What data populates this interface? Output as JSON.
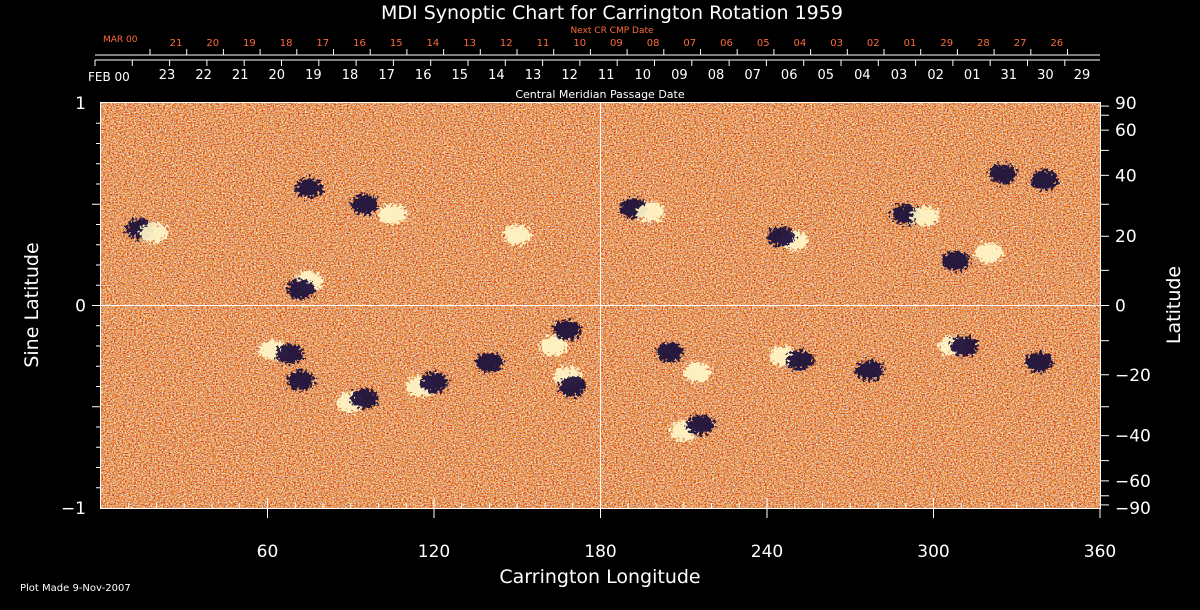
{
  "chart_data": {
    "type": "heatmap",
    "title": "MDI Synoptic Chart for Carrington Rotation 1959",
    "xlabel": "Carrington Longitude",
    "ylabel_left": "Sine Latitude",
    "ylabel_right": "Latitude",
    "xlim": [
      0,
      360
    ],
    "ylim": [
      -1,
      1
    ],
    "x_ticks": [
      60,
      120,
      180,
      240,
      300,
      360
    ],
    "y_ticks_left": [
      1,
      0,
      -1
    ],
    "y_ticks_left_labels": [
      "1",
      "0",
      "−1"
    ],
    "y_ticks_right": [
      90,
      60,
      40,
      20,
      0,
      -20,
      -40,
      -60,
      -90
    ],
    "y_ticks_right_labels": [
      "90",
      "60",
      "40",
      "20",
      "0",
      "−20",
      "−40",
      "−60",
      "−90"
    ],
    "top_axis_cmp": {
      "title": "Central Meridian Passage Date",
      "month_label": "FEB 00",
      "dates": [
        "23",
        "22",
        "21",
        "20",
        "19",
        "18",
        "17",
        "16",
        "15",
        "14",
        "13",
        "12",
        "11",
        "10",
        "09",
        "08",
        "07",
        "06",
        "05",
        "04",
        "03",
        "02",
        "01",
        "31",
        "30",
        "29"
      ]
    },
    "top_axis_next": {
      "title": "Next CR CMP Date",
      "month_label": "MAR 00",
      "dates": [
        "21",
        "20",
        "19",
        "18",
        "17",
        "16",
        "15",
        "14",
        "13",
        "12",
        "11",
        "10",
        "09",
        "08",
        "07",
        "06",
        "05",
        "04",
        "03",
        "02",
        "01",
        "29",
        "28",
        "27",
        "26"
      ]
    },
    "grid": {
      "meridian": 180,
      "equator": 0
    },
    "colors": {
      "background": "#000000",
      "field": "#ff4a10",
      "positive": "#fff6c8",
      "negative": "#1a0a3a",
      "next_axis": "#ff6a3a"
    },
    "features": [
      {
        "lon": 14,
        "sinlat": 0.38,
        "polarity": "negative"
      },
      {
        "lon": 19,
        "sinlat": 0.36,
        "polarity": "positive"
      },
      {
        "lon": 75,
        "sinlat": 0.58,
        "polarity": "negative"
      },
      {
        "lon": 95,
        "sinlat": 0.5,
        "polarity": "negative"
      },
      {
        "lon": 105,
        "sinlat": 0.45,
        "polarity": "positive"
      },
      {
        "lon": 75,
        "sinlat": 0.12,
        "polarity": "positive"
      },
      {
        "lon": 72,
        "sinlat": 0.08,
        "polarity": "negative"
      },
      {
        "lon": 150,
        "sinlat": 0.35,
        "polarity": "positive"
      },
      {
        "lon": 192,
        "sinlat": 0.48,
        "polarity": "negative"
      },
      {
        "lon": 198,
        "sinlat": 0.46,
        "polarity": "positive"
      },
      {
        "lon": 250,
        "sinlat": 0.32,
        "polarity": "positive"
      },
      {
        "lon": 245,
        "sinlat": 0.34,
        "polarity": "negative"
      },
      {
        "lon": 290,
        "sinlat": 0.45,
        "polarity": "negative"
      },
      {
        "lon": 297,
        "sinlat": 0.44,
        "polarity": "positive"
      },
      {
        "lon": 308,
        "sinlat": 0.22,
        "polarity": "negative"
      },
      {
        "lon": 320,
        "sinlat": 0.26,
        "polarity": "positive"
      },
      {
        "lon": 325,
        "sinlat": 0.65,
        "polarity": "negative"
      },
      {
        "lon": 340,
        "sinlat": 0.62,
        "polarity": "negative"
      },
      {
        "lon": 62,
        "sinlat": -0.22,
        "polarity": "positive"
      },
      {
        "lon": 68,
        "sinlat": -0.24,
        "polarity": "negative"
      },
      {
        "lon": 72,
        "sinlat": -0.37,
        "polarity": "negative"
      },
      {
        "lon": 90,
        "sinlat": -0.48,
        "polarity": "positive"
      },
      {
        "lon": 95,
        "sinlat": -0.46,
        "polarity": "negative"
      },
      {
        "lon": 115,
        "sinlat": -0.4,
        "polarity": "positive"
      },
      {
        "lon": 120,
        "sinlat": -0.38,
        "polarity": "negative"
      },
      {
        "lon": 140,
        "sinlat": -0.28,
        "polarity": "negative"
      },
      {
        "lon": 163,
        "sinlat": -0.2,
        "polarity": "positive"
      },
      {
        "lon": 168,
        "sinlat": -0.35,
        "polarity": "positive"
      },
      {
        "lon": 170,
        "sinlat": -0.4,
        "polarity": "negative"
      },
      {
        "lon": 168,
        "sinlat": -0.12,
        "polarity": "negative"
      },
      {
        "lon": 205,
        "sinlat": -0.23,
        "polarity": "negative"
      },
      {
        "lon": 215,
        "sinlat": -0.33,
        "polarity": "positive"
      },
      {
        "lon": 210,
        "sinlat": -0.62,
        "polarity": "positive"
      },
      {
        "lon": 216,
        "sinlat": -0.59,
        "polarity": "negative"
      },
      {
        "lon": 246,
        "sinlat": -0.25,
        "polarity": "positive"
      },
      {
        "lon": 252,
        "sinlat": -0.27,
        "polarity": "negative"
      },
      {
        "lon": 277,
        "sinlat": -0.32,
        "polarity": "negative"
      },
      {
        "lon": 307,
        "sinlat": -0.2,
        "polarity": "positive"
      },
      {
        "lon": 311,
        "sinlat": -0.2,
        "polarity": "negative"
      },
      {
        "lon": 338,
        "sinlat": -0.28,
        "polarity": "negative"
      }
    ]
  },
  "footer": {
    "plot_made": "Plot Made  9-Nov-2007"
  }
}
